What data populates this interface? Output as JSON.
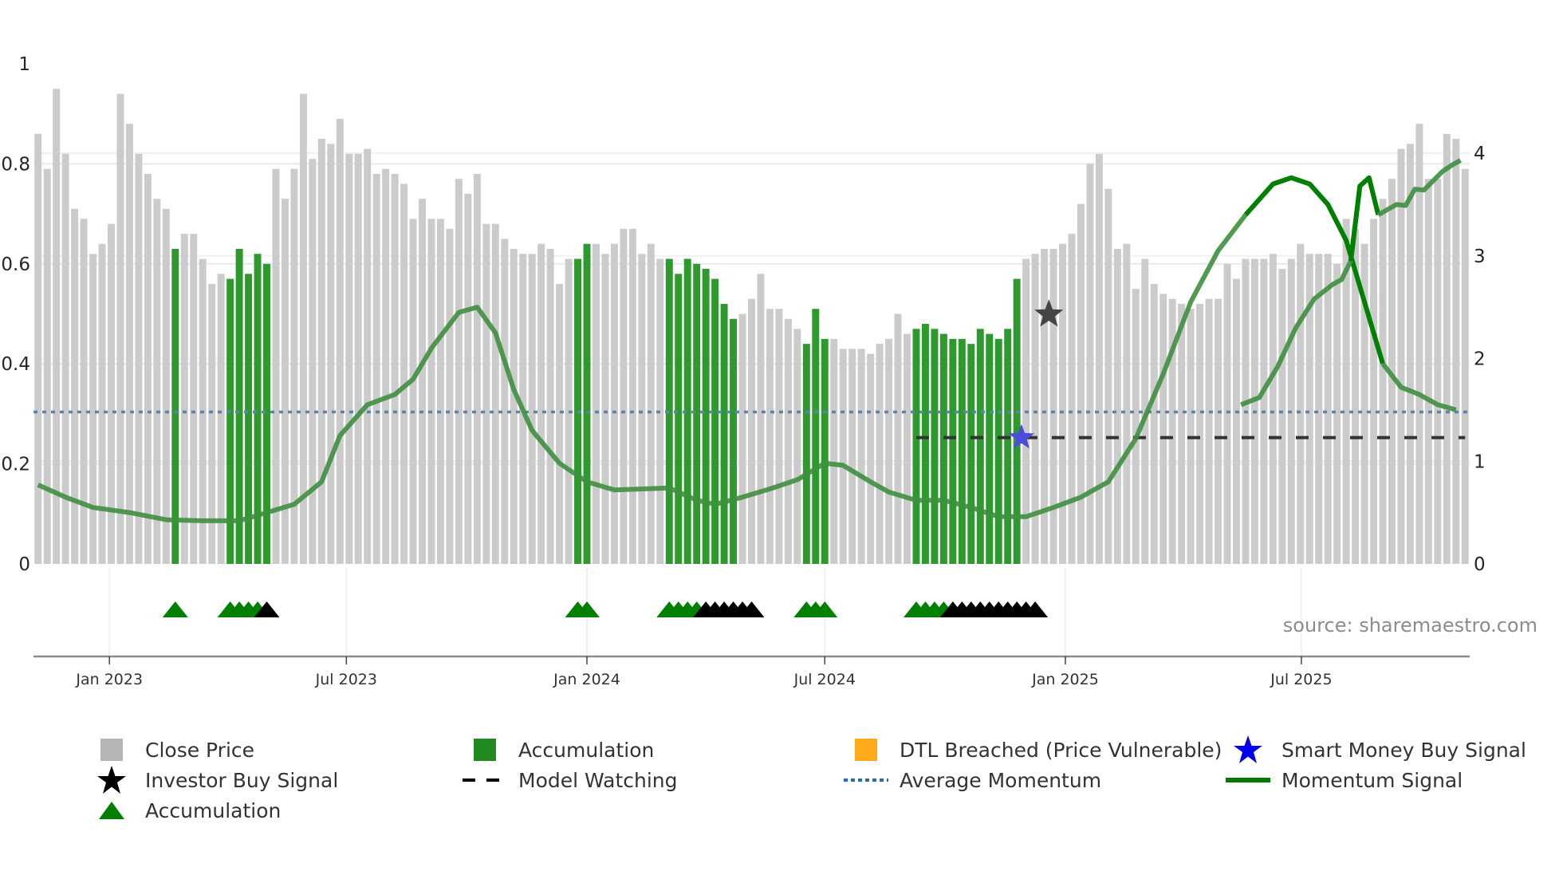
{
  "chart_data": {
    "type": "bar",
    "title": "",
    "xlabel": "",
    "ylabel": "",
    "left_axis": {
      "ticks": [
        "0",
        "0.2",
        "0.4",
        "0.6",
        "0.8",
        "1"
      ],
      "ylim": [
        0,
        1
      ]
    },
    "right_axis": {
      "ticks": [
        "0",
        "1",
        "2",
        "3",
        "4"
      ],
      "ylim": [
        0,
        4.87
      ]
    },
    "x_ticks": [
      {
        "label": "Jan 2023",
        "bar_index": 8.3
      },
      {
        "label": "Jul 2023",
        "bar_index": 34.2
      },
      {
        "label": "Jan 2024",
        "bar_index": 60.5
      },
      {
        "label": "Jul 2024",
        "bar_index": 86.5
      },
      {
        "label": "Jan 2025",
        "bar_index": 112.8
      },
      {
        "label": "Jul 2025",
        "bar_index": 138.6
      }
    ],
    "grid": true,
    "legend_position": "bottom",
    "series": [
      {
        "name": "Close Price",
        "kind": "bar",
        "color": "#c8c8c8",
        "values": [
          0.86,
          0.79,
          0.95,
          0.82,
          0.71,
          0.69,
          0.62,
          0.64,
          0.68,
          0.94,
          0.88,
          0.82,
          0.78,
          0.73,
          0.71,
          0.63,
          0.66,
          0.66,
          0.61,
          0.56,
          0.58,
          0.57,
          0.63,
          0.58,
          0.62,
          0.6,
          0.79,
          0.73,
          0.79,
          0.94,
          0.81,
          0.85,
          0.84,
          0.89,
          0.82,
          0.82,
          0.83,
          0.78,
          0.79,
          0.78,
          0.76,
          0.69,
          0.73,
          0.69,
          0.69,
          0.67,
          0.77,
          0.74,
          0.78,
          0.68,
          0.68,
          0.65,
          0.63,
          0.62,
          0.62,
          0.64,
          0.63,
          0.56,
          0.61,
          0.61,
          0.64,
          0.64,
          0.62,
          0.64,
          0.67,
          0.67,
          0.62,
          0.64,
          0.61,
          0.61,
          0.58,
          0.61,
          0.6,
          0.59,
          0.57,
          0.52,
          0.49,
          0.5,
          0.53,
          0.58,
          0.51,
          0.51,
          0.49,
          0.47,
          0.44,
          0.51,
          0.45,
          0.45,
          0.43,
          0.43,
          0.43,
          0.42,
          0.44,
          0.45,
          0.5,
          0.46,
          0.47,
          0.48,
          0.47,
          0.46,
          0.45,
          0.45,
          0.44,
          0.47,
          0.46,
          0.45,
          0.47,
          0.57,
          0.61,
          0.62,
          0.63,
          0.63,
          0.64,
          0.66,
          0.72,
          0.8,
          0.82,
          0.75,
          0.63,
          0.64,
          0.55,
          0.61,
          0.56,
          0.54,
          0.53,
          0.52,
          0.51,
          0.52,
          0.53,
          0.53,
          0.6,
          0.57,
          0.61,
          0.61,
          0.61,
          0.62,
          0.59,
          0.61,
          0.64,
          0.62,
          0.62,
          0.62,
          0.6,
          0.69,
          0.67,
          0.64,
          0.69,
          0.73,
          0.77,
          0.83,
          0.84,
          0.88,
          0.77,
          0.77,
          0.86,
          0.85,
          0.79
        ]
      },
      {
        "name": "Accumulation",
        "kind": "bar-highlight",
        "color": "#1f8a1f",
        "bar_indices": [
          15,
          21,
          22,
          23,
          24,
          25,
          59,
          60,
          69,
          70,
          71,
          72,
          73,
          74,
          75,
          76,
          84,
          85,
          86,
          96,
          97,
          98,
          99,
          100,
          101,
          102,
          103,
          104,
          105,
          106,
          107
        ]
      },
      {
        "name": "Momentum Signal",
        "kind": "line",
        "axis": "right",
        "color": "#007a00",
        "points": [
          [
            0,
            0.77
          ],
          [
            3,
            0.65
          ],
          [
            6,
            0.55
          ],
          [
            10,
            0.5
          ],
          [
            14,
            0.43
          ],
          [
            18,
            0.42
          ],
          [
            22,
            0.42
          ],
          [
            25,
            0.5
          ],
          [
            28,
            0.58
          ],
          [
            31,
            0.8
          ],
          [
            33,
            1.25
          ],
          [
            36,
            1.55
          ],
          [
            39,
            1.65
          ],
          [
            41,
            1.8
          ],
          [
            43,
            2.1
          ],
          [
            46,
            2.45
          ],
          [
            48,
            2.5
          ],
          [
            50,
            2.25
          ],
          [
            52,
            1.7
          ],
          [
            54,
            1.3
          ],
          [
            57,
            0.98
          ],
          [
            60,
            0.8
          ],
          [
            63,
            0.72
          ],
          [
            66,
            0.73
          ],
          [
            69,
            0.74
          ],
          [
            72,
            0.62
          ],
          [
            74,
            0.58
          ],
          [
            77,
            0.65
          ],
          [
            80,
            0.73
          ],
          [
            83,
            0.82
          ],
          [
            86,
            0.98
          ],
          [
            88,
            0.96
          ],
          [
            91,
            0.8
          ],
          [
            93,
            0.7
          ],
          [
            96,
            0.62
          ],
          [
            99,
            0.62
          ],
          [
            102,
            0.55
          ],
          [
            105,
            0.46
          ],
          [
            108,
            0.46
          ],
          [
            111,
            0.55
          ],
          [
            114,
            0.65
          ],
          [
            117,
            0.8
          ],
          [
            120,
            1.22
          ],
          [
            123,
            1.85
          ],
          [
            126,
            2.6
          ],
          [
            129,
            3.1
          ],
          [
            132,
            3.45
          ],
          [
            135,
            3.73
          ],
          [
            137,
            3.76
          ],
          [
            140,
            3.65
          ],
          [
            142,
            3.45
          ],
          [
            144,
            3.05
          ],
          [
            146,
            2.5
          ],
          [
            148,
            1.95
          ],
          [
            150,
            1.7
          ],
          [
            152,
            1.62
          ],
          [
            154,
            1.55
          ]
        ]
      },
      {
        "name": "Average Momentum",
        "kind": "hline",
        "axis": "right",
        "color": "#3a74a8",
        "value": 1.48
      },
      {
        "name": "Model Watching",
        "kind": "hline-segment",
        "axis": "right",
        "color": "#222222",
        "value": 1.23,
        "from_index": 96,
        "to_index": 156
      },
      {
        "name": "Investor Buy Signal",
        "kind": "marker",
        "axis": "right",
        "color": "#444444",
        "points": [
          [
            110.5,
            2.43
          ]
        ]
      },
      {
        "name": "Smart Money Buy Signal",
        "kind": "marker",
        "axis": "right",
        "color": "#3a3ae0",
        "points": [
          [
            107.5,
            1.23
          ]
        ]
      },
      {
        "name": "Accumulation",
        "kind": "triangle-markers",
        "green_indices": [
          15,
          21,
          22,
          23,
          24,
          59,
          60,
          69,
          70,
          71,
          72,
          84,
          85,
          86,
          96,
          97,
          98,
          99
        ],
        "black_indices": [
          25,
          73,
          74,
          75,
          76,
          77,
          78,
          100,
          101,
          102,
          103,
          104,
          105,
          106,
          107,
          108,
          109
        ]
      }
    ],
    "momentum_tail": {
      "note": "right side momentum segment",
      "points": [
        [
          120,
          1.22
        ],
        [
          123,
          1.85
        ],
        [
          126,
          2.55
        ],
        [
          129,
          3.05
        ],
        [
          132,
          3.4
        ],
        [
          135,
          3.7
        ],
        [
          137,
          3.76
        ],
        [
          139,
          3.7
        ],
        [
          141,
          3.5
        ],
        [
          143,
          3.15
        ],
        [
          145,
          2.55
        ],
        [
          147,
          1.95
        ],
        [
          149,
          1.72
        ],
        [
          151,
          1.65
        ],
        [
          153,
          1.55
        ],
        [
          155,
          1.5
        ]
      ]
    },
    "momentum_late": [
      [
        138,
        1.55
      ],
      [
        140,
        1.62
      ],
      [
        142,
        1.92
      ],
      [
        144,
        2.3
      ],
      [
        146,
        2.58
      ],
      [
        148,
        2.72
      ],
      [
        149,
        2.77
      ],
      [
        150,
        2.95
      ],
      [
        151,
        3.68
      ],
      [
        152,
        3.76
      ],
      [
        153,
        3.4
      ],
      [
        154,
        3.45
      ],
      [
        155,
        3.5
      ],
      [
        156,
        3.49
      ],
      [
        157,
        3.65
      ],
      [
        158,
        3.64
      ],
      [
        159,
        3.73
      ],
      [
        160,
        3.82
      ],
      [
        161,
        3.88
      ],
      [
        162,
        3.93
      ]
    ]
  },
  "annotation": {
    "source": "source: sharemaestro.com"
  },
  "legend": {
    "items": [
      {
        "label": "Close Price",
        "symbol": "square",
        "color": "#b5b5b5"
      },
      {
        "label": "Accumulation",
        "symbol": "square",
        "color": "#1f8a1f"
      },
      {
        "label": "DTL Breached (Price Vulnerable)",
        "symbol": "square",
        "color": "#ffab1a"
      },
      {
        "label": "Smart Money Buy Signal",
        "symbol": "star",
        "color": "#0000ee"
      },
      {
        "label": "Investor Buy Signal",
        "symbol": "star",
        "color": "#000000"
      },
      {
        "label": "Model Watching",
        "symbol": "dash",
        "color": "#000000"
      },
      {
        "label": "Average Momentum",
        "symbol": "dotted",
        "color": "#2e6da4"
      },
      {
        "label": "Momentum Signal",
        "symbol": "line",
        "color": "#007a00"
      },
      {
        "label": "Accumulation",
        "symbol": "triangle",
        "color": "#008000"
      }
    ]
  }
}
